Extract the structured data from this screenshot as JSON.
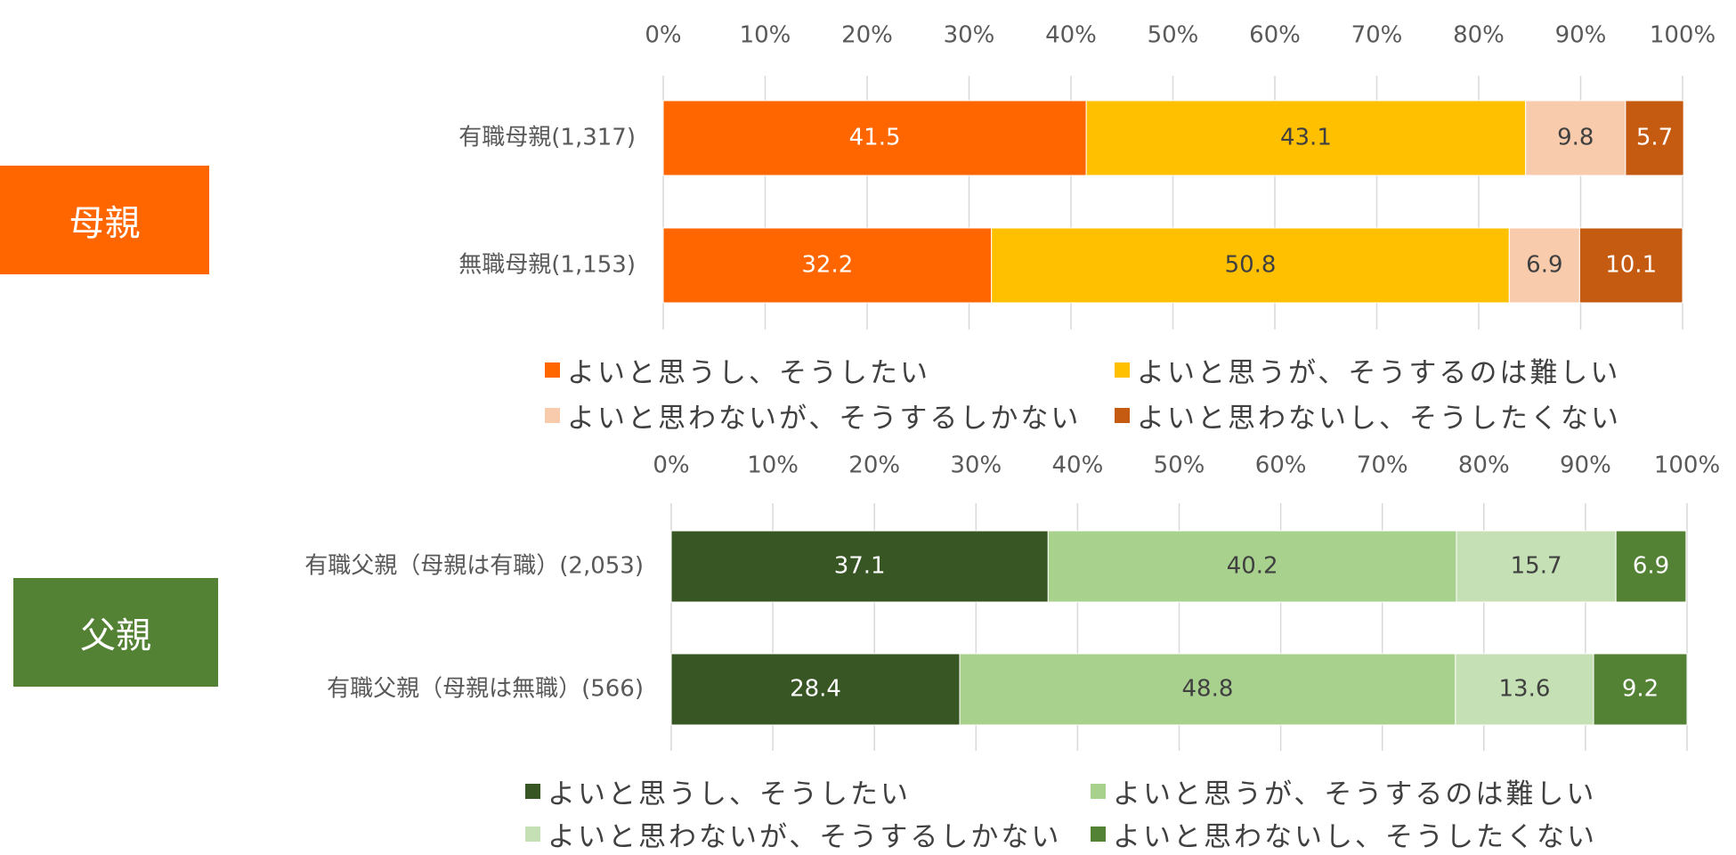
{
  "groups": [
    {
      "label": "母親",
      "color": "#FF6600"
    },
    {
      "label": "父親",
      "color": "#548235"
    }
  ],
  "chart_data": [
    {
      "type": "bar",
      "orientation": "horizontal",
      "stacked": true,
      "title": "",
      "x_ticks": [
        "0%",
        "10%",
        "20%",
        "30%",
        "40%",
        "50%",
        "60%",
        "70%",
        "80%",
        "90%",
        "100%"
      ],
      "xlim": [
        0,
        100
      ],
      "categories": [
        "有職母親(1,317)",
        "無職母親(1,153)"
      ],
      "series": [
        {
          "name": "よいと思うし、そうしたい",
          "color": "#FF6600",
          "label_color": "#ffffff",
          "values": [
            41.5,
            32.2
          ]
        },
        {
          "name": "よいと思うが、そうするのは難しい",
          "color": "#FFC000",
          "label_color": "#404040",
          "values": [
            43.1,
            50.8
          ]
        },
        {
          "name": "よいと思わないが、そうするしかない",
          "color": "#F8CBAD",
          "label_color": "#404040",
          "values": [
            9.8,
            6.9
          ]
        },
        {
          "name": "よいと思わないし、そうしたくない",
          "color": "#C55A11",
          "label_color": "#ffffff",
          "values": [
            5.7,
            10.1
          ]
        }
      ],
      "legend": "bottom"
    },
    {
      "type": "bar",
      "orientation": "horizontal",
      "stacked": true,
      "title": "",
      "x_ticks": [
        "0%",
        "10%",
        "20%",
        "30%",
        "40%",
        "50%",
        "60%",
        "70%",
        "80%",
        "90%",
        "100%"
      ],
      "xlim": [
        0,
        100
      ],
      "categories": [
        "有職父親（母親は有職）(2,053)",
        "有職父親（母親は無職）(566)"
      ],
      "series": [
        {
          "name": "よいと思うし、そうしたい",
          "color": "#375623",
          "label_color": "#ffffff",
          "values": [
            37.1,
            28.4
          ]
        },
        {
          "name": "よいと思うが、そうするのは難しい",
          "color": "#A9D18E",
          "label_color": "#404040",
          "values": [
            40.2,
            48.8
          ]
        },
        {
          "name": "よいと思わないが、そうするしかない",
          "color": "#C5E0B4",
          "label_color": "#404040",
          "values": [
            15.7,
            13.6
          ]
        },
        {
          "name": "よいと思わないし、そうしたくない",
          "color": "#548235",
          "label_color": "#ffffff",
          "values": [
            6.9,
            9.2
          ]
        }
      ],
      "legend": "bottom"
    }
  ]
}
